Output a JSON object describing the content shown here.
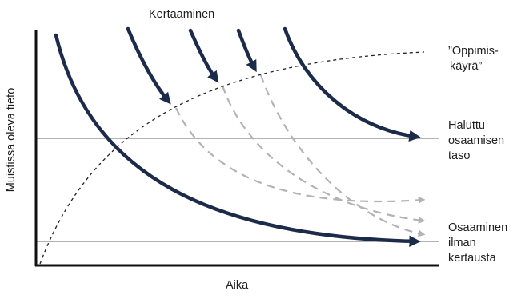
{
  "diagram": {
    "top_label": "Kertaaminen",
    "x_axis_label": "Aika",
    "y_axis_label": "Muistissa oleva tieto",
    "learning_curve_label": [
      "”Oppimis-",
      "käyrä”"
    ],
    "desired_level_label": [
      "Haluttu",
      "osaamisen",
      "taso"
    ],
    "no_review_label": [
      "Osaaminen",
      "ilman",
      "kertausta"
    ]
  },
  "colors": {
    "forgetting_curve": "#1c2b4a",
    "projected_decay": "#b3b3b3",
    "level_lines": "#9a9a9a",
    "learning_curve": "#222222",
    "axes": "#111111"
  }
}
